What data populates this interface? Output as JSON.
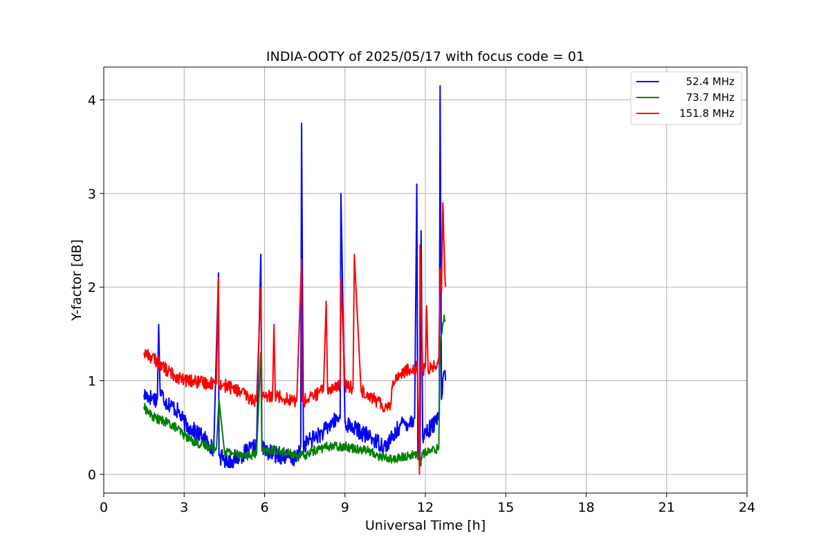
{
  "chart_data": {
    "type": "line",
    "title": "INDIA-OOTY of 2025/05/17 with focus code = 01",
    "xlabel": "Universal Time [h]",
    "ylabel": "Y-factor [dB]",
    "xlim": [
      0,
      24
    ],
    "ylim": [
      -0.2,
      4.35
    ],
    "xticks": [
      0,
      3,
      6,
      9,
      12,
      15,
      18,
      21,
      24
    ],
    "yticks": [
      0,
      1,
      2,
      3,
      4
    ],
    "grid": true,
    "legend_position": "top-right",
    "series": [
      {
        "name": "52.4 MHz",
        "color": "#0000ff",
        "x": [
          1.5,
          1.8,
          2.0,
          2.05,
          2.1,
          2.3,
          2.6,
          2.8,
          3.0,
          3.3,
          3.6,
          3.9,
          4.1,
          4.28,
          4.3,
          4.5,
          4.8,
          5.1,
          5.4,
          5.7,
          5.86,
          5.9,
          6.0,
          6.3,
          6.6,
          6.9,
          7.2,
          7.35,
          7.38,
          7.45,
          7.6,
          7.9,
          8.2,
          8.5,
          8.82,
          8.85,
          9.0,
          9.3,
          9.6,
          9.9,
          10.2,
          10.5,
          10.8,
          11.0,
          11.2,
          11.4,
          11.6,
          11.68,
          11.72,
          11.8,
          11.84,
          11.9,
          12.0,
          12.2,
          12.4,
          12.52,
          12.55,
          12.6,
          12.7,
          12.75
        ],
        "y": [
          0.85,
          0.82,
          0.8,
          1.6,
          0.9,
          0.78,
          0.72,
          0.66,
          0.55,
          0.48,
          0.42,
          0.35,
          0.25,
          2.15,
          0.2,
          0.16,
          0.15,
          0.2,
          0.25,
          0.3,
          2.35,
          0.3,
          0.25,
          0.22,
          0.2,
          0.18,
          0.16,
          0.3,
          3.75,
          0.3,
          0.35,
          0.4,
          0.45,
          0.55,
          0.6,
          3.0,
          0.55,
          0.5,
          0.45,
          0.4,
          0.35,
          0.3,
          0.4,
          0.5,
          0.55,
          0.55,
          0.6,
          3.1,
          0.2,
          0.15,
          2.6,
          0.4,
          0.45,
          0.5,
          0.55,
          0.65,
          4.15,
          0.8,
          1.1,
          1.0
        ]
      },
      {
        "name": "73.7 MHz",
        "color": "#008000",
        "x": [
          1.5,
          1.8,
          2.1,
          2.4,
          2.7,
          3.0,
          3.3,
          3.6,
          3.9,
          4.2,
          4.3,
          4.5,
          4.8,
          5.1,
          5.4,
          5.7,
          5.86,
          5.9,
          6.0,
          6.3,
          6.6,
          6.9,
          7.2,
          7.5,
          7.8,
          8.1,
          8.4,
          8.7,
          9.0,
          9.3,
          9.6,
          9.9,
          10.2,
          10.5,
          10.8,
          11.1,
          11.4,
          11.7,
          11.8,
          11.9,
          12.2,
          12.5,
          12.55,
          12.6,
          12.7,
          12.75
        ],
        "y": [
          0.72,
          0.62,
          0.58,
          0.55,
          0.5,
          0.42,
          0.36,
          0.32,
          0.3,
          0.27,
          0.8,
          0.25,
          0.23,
          0.22,
          0.2,
          0.22,
          1.3,
          0.25,
          0.24,
          0.26,
          0.25,
          0.22,
          0.2,
          0.2,
          0.25,
          0.28,
          0.3,
          0.3,
          0.3,
          0.28,
          0.27,
          0.25,
          0.2,
          0.18,
          0.16,
          0.18,
          0.2,
          0.22,
          0.1,
          0.22,
          0.25,
          0.28,
          1.4,
          1.5,
          1.7,
          1.65
        ]
      },
      {
        "name": "151.8 MHz",
        "color": "#ff0000",
        "x": [
          1.5,
          1.8,
          2.1,
          2.4,
          2.7,
          3.0,
          3.3,
          3.6,
          3.9,
          4.2,
          4.28,
          4.3,
          4.5,
          4.8,
          5.1,
          5.4,
          5.7,
          5.86,
          5.9,
          6.0,
          6.3,
          6.35,
          6.4,
          6.6,
          6.9,
          7.2,
          7.38,
          7.4,
          7.6,
          7.9,
          8.2,
          8.3,
          8.35,
          8.5,
          8.82,
          8.85,
          9.0,
          9.3,
          9.35,
          9.6,
          9.9,
          10.2,
          10.5,
          10.7,
          10.8,
          11.1,
          11.4,
          11.7,
          11.78,
          11.8,
          11.9,
          12.0,
          12.05,
          12.1,
          12.3,
          12.5,
          12.55,
          12.6,
          12.65,
          12.7,
          12.75
        ],
        "y": [
          1.3,
          1.25,
          1.18,
          1.1,
          1.05,
          1.0,
          1.0,
          0.98,
          0.98,
          0.97,
          2.1,
          0.96,
          0.95,
          0.92,
          0.88,
          0.82,
          0.78,
          2.0,
          0.8,
          0.82,
          0.85,
          1.6,
          0.85,
          0.83,
          0.8,
          0.78,
          2.3,
          0.78,
          0.8,
          0.85,
          0.9,
          1.85,
          0.9,
          0.92,
          0.95,
          2.1,
          0.95,
          0.92,
          2.35,
          0.9,
          0.85,
          0.78,
          0.72,
          0.75,
          1.0,
          1.08,
          1.12,
          1.15,
          0.0,
          2.45,
          1.1,
          1.15,
          1.8,
          1.12,
          1.15,
          1.2,
          2.2,
          1.95,
          2.9,
          2.4,
          2.0
        ]
      }
    ]
  }
}
